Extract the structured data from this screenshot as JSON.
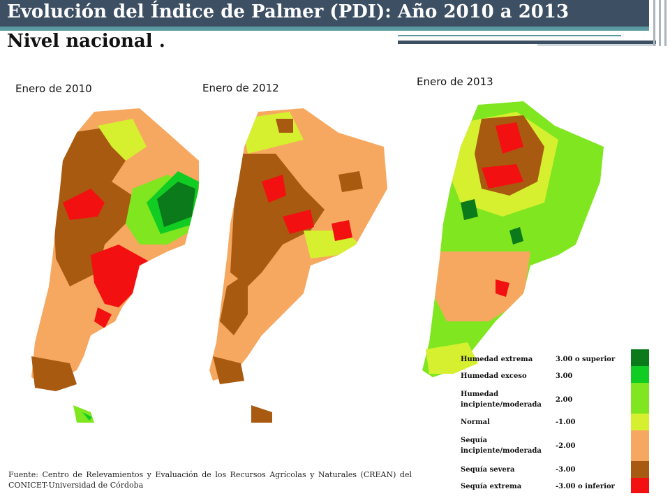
{
  "title": {
    "line1": "Evolución del Índice de Palmer (PDI):  Año 2010 a 2013",
    "line2": "Nivel nacional ."
  },
  "maps": [
    {
      "label": "Enero de 2010"
    },
    {
      "label": "Enero de 2012"
    },
    {
      "label": "Enero de 2013"
    }
  ],
  "legend": {
    "items": [
      {
        "label": "Humedad extrema",
        "value": "3.00 o superior",
        "color": "#0a7a1a"
      },
      {
        "label": "Humedad exceso",
        "value": "3.00",
        "color": "#11cc22"
      },
      {
        "label": "Humedad incipiente/moderada",
        "value": "2.00",
        "color": "#7fe620"
      },
      {
        "label": "Normal",
        "value": "-1.00",
        "color": "#d6f030"
      },
      {
        "label": "Sequía incipiente/moderada",
        "value": "-2.00",
        "color": "#f7a860"
      },
      {
        "label": "Sequía severa",
        "value": "-3.00",
        "color": "#a85a10"
      },
      {
        "label": "Sequía extrema",
        "value": "-3.00 o inferior",
        "color": "#f21010"
      }
    ]
  },
  "source": "Fuente: Centro de Relevamientos y Evaluación de los Recursos Agrícolas y Naturales (CREAN) del CONICET-Universidad de Córdoba"
}
